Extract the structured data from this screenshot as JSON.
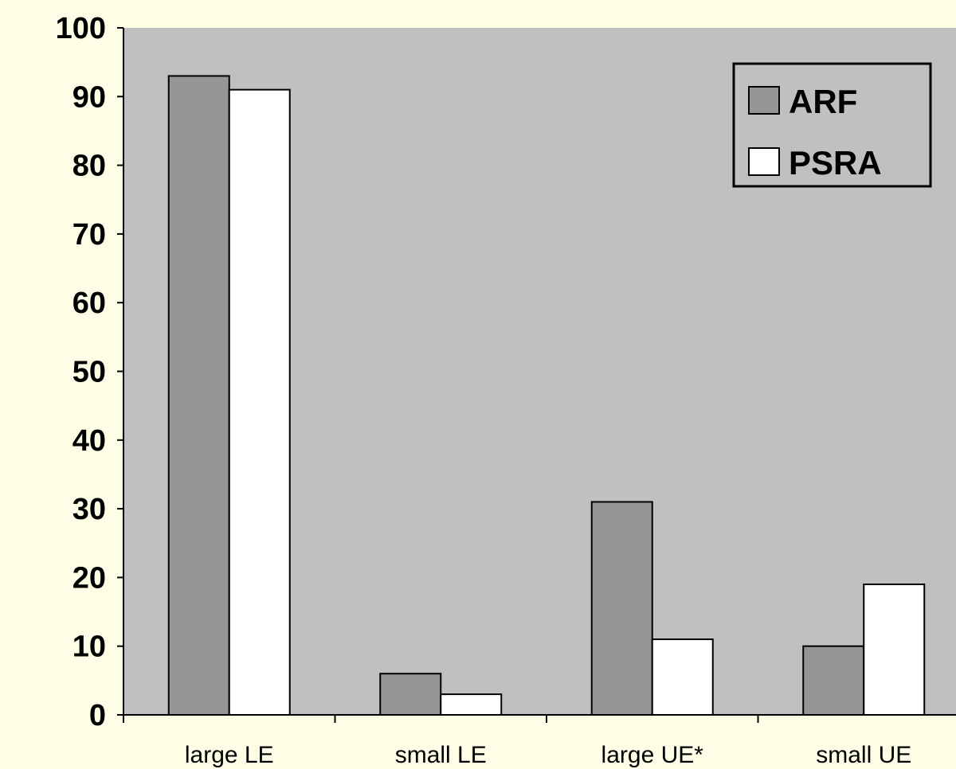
{
  "chart_data": {
    "type": "bar",
    "categories": [
      "large LE",
      "small LE",
      "large UE*",
      "small UE"
    ],
    "series": [
      {
        "name": "ARF",
        "values": [
          93,
          6,
          31,
          10
        ],
        "color": "#969696"
      },
      {
        "name": "PSRA",
        "values": [
          91,
          3,
          11,
          19
        ],
        "color": "#ffffff"
      }
    ],
    "yticks": [
      "0",
      "10",
      "20",
      "30",
      "40",
      "50",
      "60",
      "70",
      "80",
      "90",
      "100"
    ],
    "ylim": [
      0,
      100
    ],
    "grid": false,
    "legend": "top-right",
    "colors": {
      "plot_background": "#c0c0c0",
      "page_background": "#fefee6"
    }
  }
}
